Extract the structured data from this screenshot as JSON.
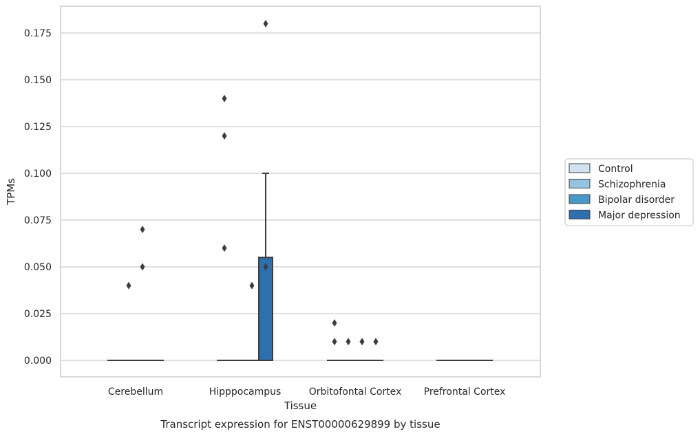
{
  "chart_data": {
    "type": "box",
    "xlabel": "Tissue",
    "ylabel": "TPMs",
    "caption": "Transcript expression for ENST00000629899 by tissue",
    "categories": [
      "Cerebellum",
      "Hipppocampus",
      "Orbitofontal Cortex",
      "Prefrontal Cortex"
    ],
    "ylim": [
      -0.009,
      0.189
    ],
    "yticks": [
      0.0,
      0.025,
      0.05,
      0.075,
      0.1,
      0.125,
      0.15,
      0.175
    ],
    "ytick_labels": [
      "0.000",
      "0.025",
      "0.050",
      "0.075",
      "0.100",
      "0.125",
      "0.150",
      "0.175"
    ],
    "grid": "horizontal",
    "legend_position": "right",
    "series": [
      {
        "name": "Control",
        "color": "#d0e1f2",
        "boxes": [
          {
            "q1": 0,
            "median": 0,
            "q3": 0,
            "whislo": 0,
            "whishi": 0,
            "fliers": []
          },
          {
            "q1": 0,
            "median": 0,
            "q3": 0,
            "whislo": 0,
            "whishi": 0,
            "fliers": [
              0.06,
              0.12,
              0.14
            ]
          },
          {
            "q1": 0,
            "median": 0,
            "q3": 0,
            "whislo": 0,
            "whishi": 0,
            "fliers": [
              0.01,
              0.02
            ]
          },
          {
            "q1": 0,
            "median": 0,
            "q3": 0,
            "whislo": 0,
            "whishi": 0,
            "fliers": []
          }
        ]
      },
      {
        "name": "Schizophrenia",
        "color": "#94c4df",
        "boxes": [
          {
            "q1": 0,
            "median": 0,
            "q3": 0,
            "whislo": 0,
            "whishi": 0,
            "fliers": [
              0.04
            ]
          },
          {
            "q1": 0,
            "median": 0,
            "q3": 0,
            "whislo": 0,
            "whishi": 0,
            "fliers": []
          },
          {
            "q1": 0,
            "median": 0,
            "q3": 0,
            "whislo": 0,
            "whishi": 0,
            "fliers": [
              0.01
            ]
          },
          {
            "q1": 0,
            "median": 0,
            "q3": 0,
            "whislo": 0,
            "whishi": 0,
            "fliers": []
          }
        ]
      },
      {
        "name": "Bipolar disorder",
        "color": "#4a98c9",
        "boxes": [
          {
            "q1": 0,
            "median": 0,
            "q3": 0,
            "whislo": 0,
            "whishi": 0,
            "fliers": [
              0.05,
              0.07
            ]
          },
          {
            "q1": 0,
            "median": 0,
            "q3": 0,
            "whislo": 0,
            "whishi": 0,
            "fliers": [
              0.04
            ]
          },
          {
            "q1": 0,
            "median": 0,
            "q3": 0,
            "whislo": 0,
            "whishi": 0,
            "fliers": [
              0.01
            ]
          },
          {
            "q1": 0,
            "median": 0,
            "q3": 0,
            "whislo": 0,
            "whishi": 0,
            "fliers": []
          }
        ]
      },
      {
        "name": "Major depression",
        "color": "#2e6fad",
        "boxes": [
          {
            "q1": 0,
            "median": 0,
            "q3": 0,
            "whislo": 0,
            "whishi": 0,
            "fliers": []
          },
          {
            "q1": 0,
            "median": 0,
            "q3": 0.055,
            "whislo": 0,
            "whishi": 0.1,
            "fliers": [
              0.05,
              0.18
            ]
          },
          {
            "q1": 0,
            "median": 0,
            "q3": 0,
            "whislo": 0,
            "whishi": 0,
            "fliers": [
              0.01
            ]
          },
          {
            "q1": 0,
            "median": 0,
            "q3": 0,
            "whislo": 0,
            "whishi": 0,
            "fliers": []
          }
        ]
      }
    ]
  }
}
